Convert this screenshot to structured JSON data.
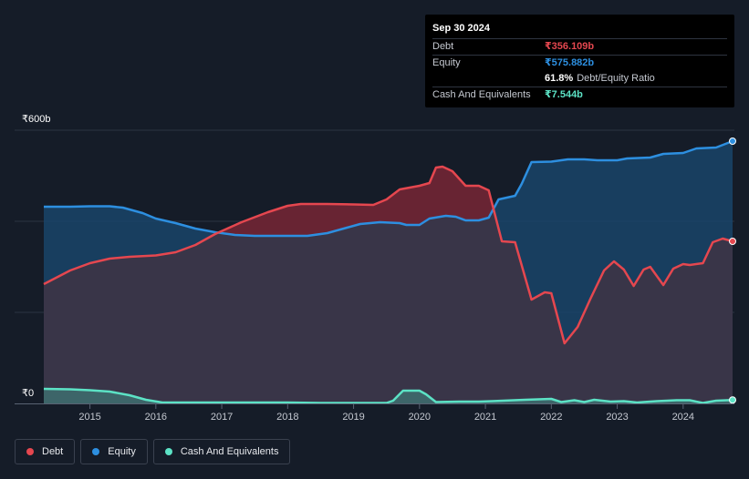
{
  "tooltip": {
    "date": "Sep 30 2024",
    "rows": [
      {
        "label": "Debt",
        "value": "₹356.109b",
        "color": "#e5474f"
      },
      {
        "label": "Equity",
        "value": "₹575.882b",
        "color": "#2d8fe0"
      },
      {
        "label": "",
        "value": "61.8%",
        "sub": "Debt/Equity Ratio",
        "color": "#ffffff"
      },
      {
        "label": "Cash And Equivalents",
        "value": "₹7.544b",
        "color": "#5ce2c5"
      }
    ]
  },
  "legend": [
    {
      "label": "Debt",
      "color": "#e5474f"
    },
    {
      "label": "Equity",
      "color": "#2d8fe0"
    },
    {
      "label": "Cash And Equivalents",
      "color": "#5ce2c5"
    }
  ],
  "chart_data": {
    "type": "area",
    "title": "",
    "xlabel": "",
    "ylabel": "",
    "ylim": [
      0,
      600
    ],
    "xlim": [
      2014.3,
      2024.75
    ],
    "y_tick_labels": [
      {
        "value": 600,
        "label": "₹600b"
      },
      {
        "value": 0,
        "label": "₹0"
      }
    ],
    "x_ticks": [
      2015,
      2016,
      2017,
      2018,
      2019,
      2020,
      2021,
      2022,
      2023,
      2024
    ],
    "x_tick_labels": [
      "2015",
      "2016",
      "2017",
      "2018",
      "2019",
      "2020",
      "2021",
      "2022",
      "2023",
      "2024"
    ],
    "series": [
      {
        "name": "Debt",
        "color": "#e5474f",
        "points": [
          [
            2014.3,
            262
          ],
          [
            2014.7,
            292
          ],
          [
            2015.0,
            308
          ],
          [
            2015.3,
            318
          ],
          [
            2015.6,
            322
          ],
          [
            2016.0,
            325
          ],
          [
            2016.3,
            332
          ],
          [
            2016.6,
            348
          ],
          [
            2016.9,
            372
          ],
          [
            2017.3,
            398
          ],
          [
            2017.7,
            420
          ],
          [
            2018.0,
            434
          ],
          [
            2018.2,
            438
          ],
          [
            2018.6,
            438
          ],
          [
            2019.0,
            437
          ],
          [
            2019.3,
            436
          ],
          [
            2019.5,
            448
          ],
          [
            2019.7,
            470
          ],
          [
            2020.0,
            478
          ],
          [
            2020.15,
            484
          ],
          [
            2020.25,
            518
          ],
          [
            2020.35,
            520
          ],
          [
            2020.5,
            510
          ],
          [
            2020.7,
            478
          ],
          [
            2020.9,
            478
          ],
          [
            2021.05,
            468
          ],
          [
            2021.25,
            356
          ],
          [
            2021.45,
            354
          ],
          [
            2021.7,
            228
          ],
          [
            2021.9,
            244
          ],
          [
            2022.0,
            242
          ],
          [
            2022.2,
            132
          ],
          [
            2022.4,
            168
          ],
          [
            2022.6,
            232
          ],
          [
            2022.8,
            292
          ],
          [
            2022.95,
            312
          ],
          [
            2023.1,
            294
          ],
          [
            2023.25,
            258
          ],
          [
            2023.4,
            294
          ],
          [
            2023.5,
            300
          ],
          [
            2023.7,
            260
          ],
          [
            2023.85,
            296
          ],
          [
            2024.0,
            306
          ],
          [
            2024.1,
            304
          ],
          [
            2024.3,
            308
          ],
          [
            2024.45,
            354
          ],
          [
            2024.6,
            362
          ],
          [
            2024.75,
            356
          ]
        ]
      },
      {
        "name": "Equity",
        "color": "#2d8fe0",
        "points": [
          [
            2014.3,
            432
          ],
          [
            2014.7,
            432
          ],
          [
            2015.0,
            433
          ],
          [
            2015.3,
            433
          ],
          [
            2015.5,
            430
          ],
          [
            2015.8,
            418
          ],
          [
            2016.0,
            406
          ],
          [
            2016.3,
            396
          ],
          [
            2016.6,
            384
          ],
          [
            2016.9,
            376
          ],
          [
            2017.2,
            370
          ],
          [
            2017.5,
            368
          ],
          [
            2017.9,
            368
          ],
          [
            2018.3,
            368
          ],
          [
            2018.6,
            374
          ],
          [
            2018.9,
            386
          ],
          [
            2019.1,
            394
          ],
          [
            2019.4,
            398
          ],
          [
            2019.7,
            396
          ],
          [
            2019.8,
            392
          ],
          [
            2020.0,
            392
          ],
          [
            2020.15,
            406
          ],
          [
            2020.4,
            412
          ],
          [
            2020.55,
            410
          ],
          [
            2020.7,
            402
          ],
          [
            2020.9,
            402
          ],
          [
            2021.05,
            408
          ],
          [
            2021.2,
            448
          ],
          [
            2021.45,
            456
          ],
          [
            2021.55,
            482
          ],
          [
            2021.7,
            530
          ],
          [
            2022.0,
            531
          ],
          [
            2022.25,
            536
          ],
          [
            2022.5,
            536
          ],
          [
            2022.7,
            534
          ],
          [
            2023.0,
            534
          ],
          [
            2023.15,
            538
          ],
          [
            2023.5,
            540
          ],
          [
            2023.7,
            548
          ],
          [
            2024.0,
            550
          ],
          [
            2024.2,
            560
          ],
          [
            2024.5,
            562
          ],
          [
            2024.75,
            576
          ]
        ]
      },
      {
        "name": "Cash And Equivalents",
        "color": "#5ce2c5",
        "points": [
          [
            2014.3,
            32
          ],
          [
            2014.7,
            31
          ],
          [
            2015.0,
            29
          ],
          [
            2015.3,
            26
          ],
          [
            2015.6,
            18
          ],
          [
            2015.85,
            8
          ],
          [
            2016.1,
            2
          ],
          [
            2016.5,
            2
          ],
          [
            2017.0,
            2
          ],
          [
            2017.5,
            2
          ],
          [
            2018.0,
            2
          ],
          [
            2018.5,
            1
          ],
          [
            2019.0,
            1
          ],
          [
            2019.5,
            1
          ],
          [
            2019.6,
            6
          ],
          [
            2019.75,
            28
          ],
          [
            2020.0,
            28
          ],
          [
            2020.1,
            20
          ],
          [
            2020.25,
            3
          ],
          [
            2020.6,
            4
          ],
          [
            2020.9,
            4
          ],
          [
            2021.1,
            5
          ],
          [
            2021.6,
            8
          ],
          [
            2022.0,
            10
          ],
          [
            2022.15,
            3
          ],
          [
            2022.35,
            7
          ],
          [
            2022.5,
            3
          ],
          [
            2022.65,
            8
          ],
          [
            2022.9,
            4
          ],
          [
            2023.1,
            5
          ],
          [
            2023.3,
            2
          ],
          [
            2023.6,
            5
          ],
          [
            2023.9,
            7
          ],
          [
            2024.1,
            7
          ],
          [
            2024.3,
            1
          ],
          [
            2024.5,
            6
          ],
          [
            2024.75,
            7.5
          ]
        ]
      }
    ]
  }
}
